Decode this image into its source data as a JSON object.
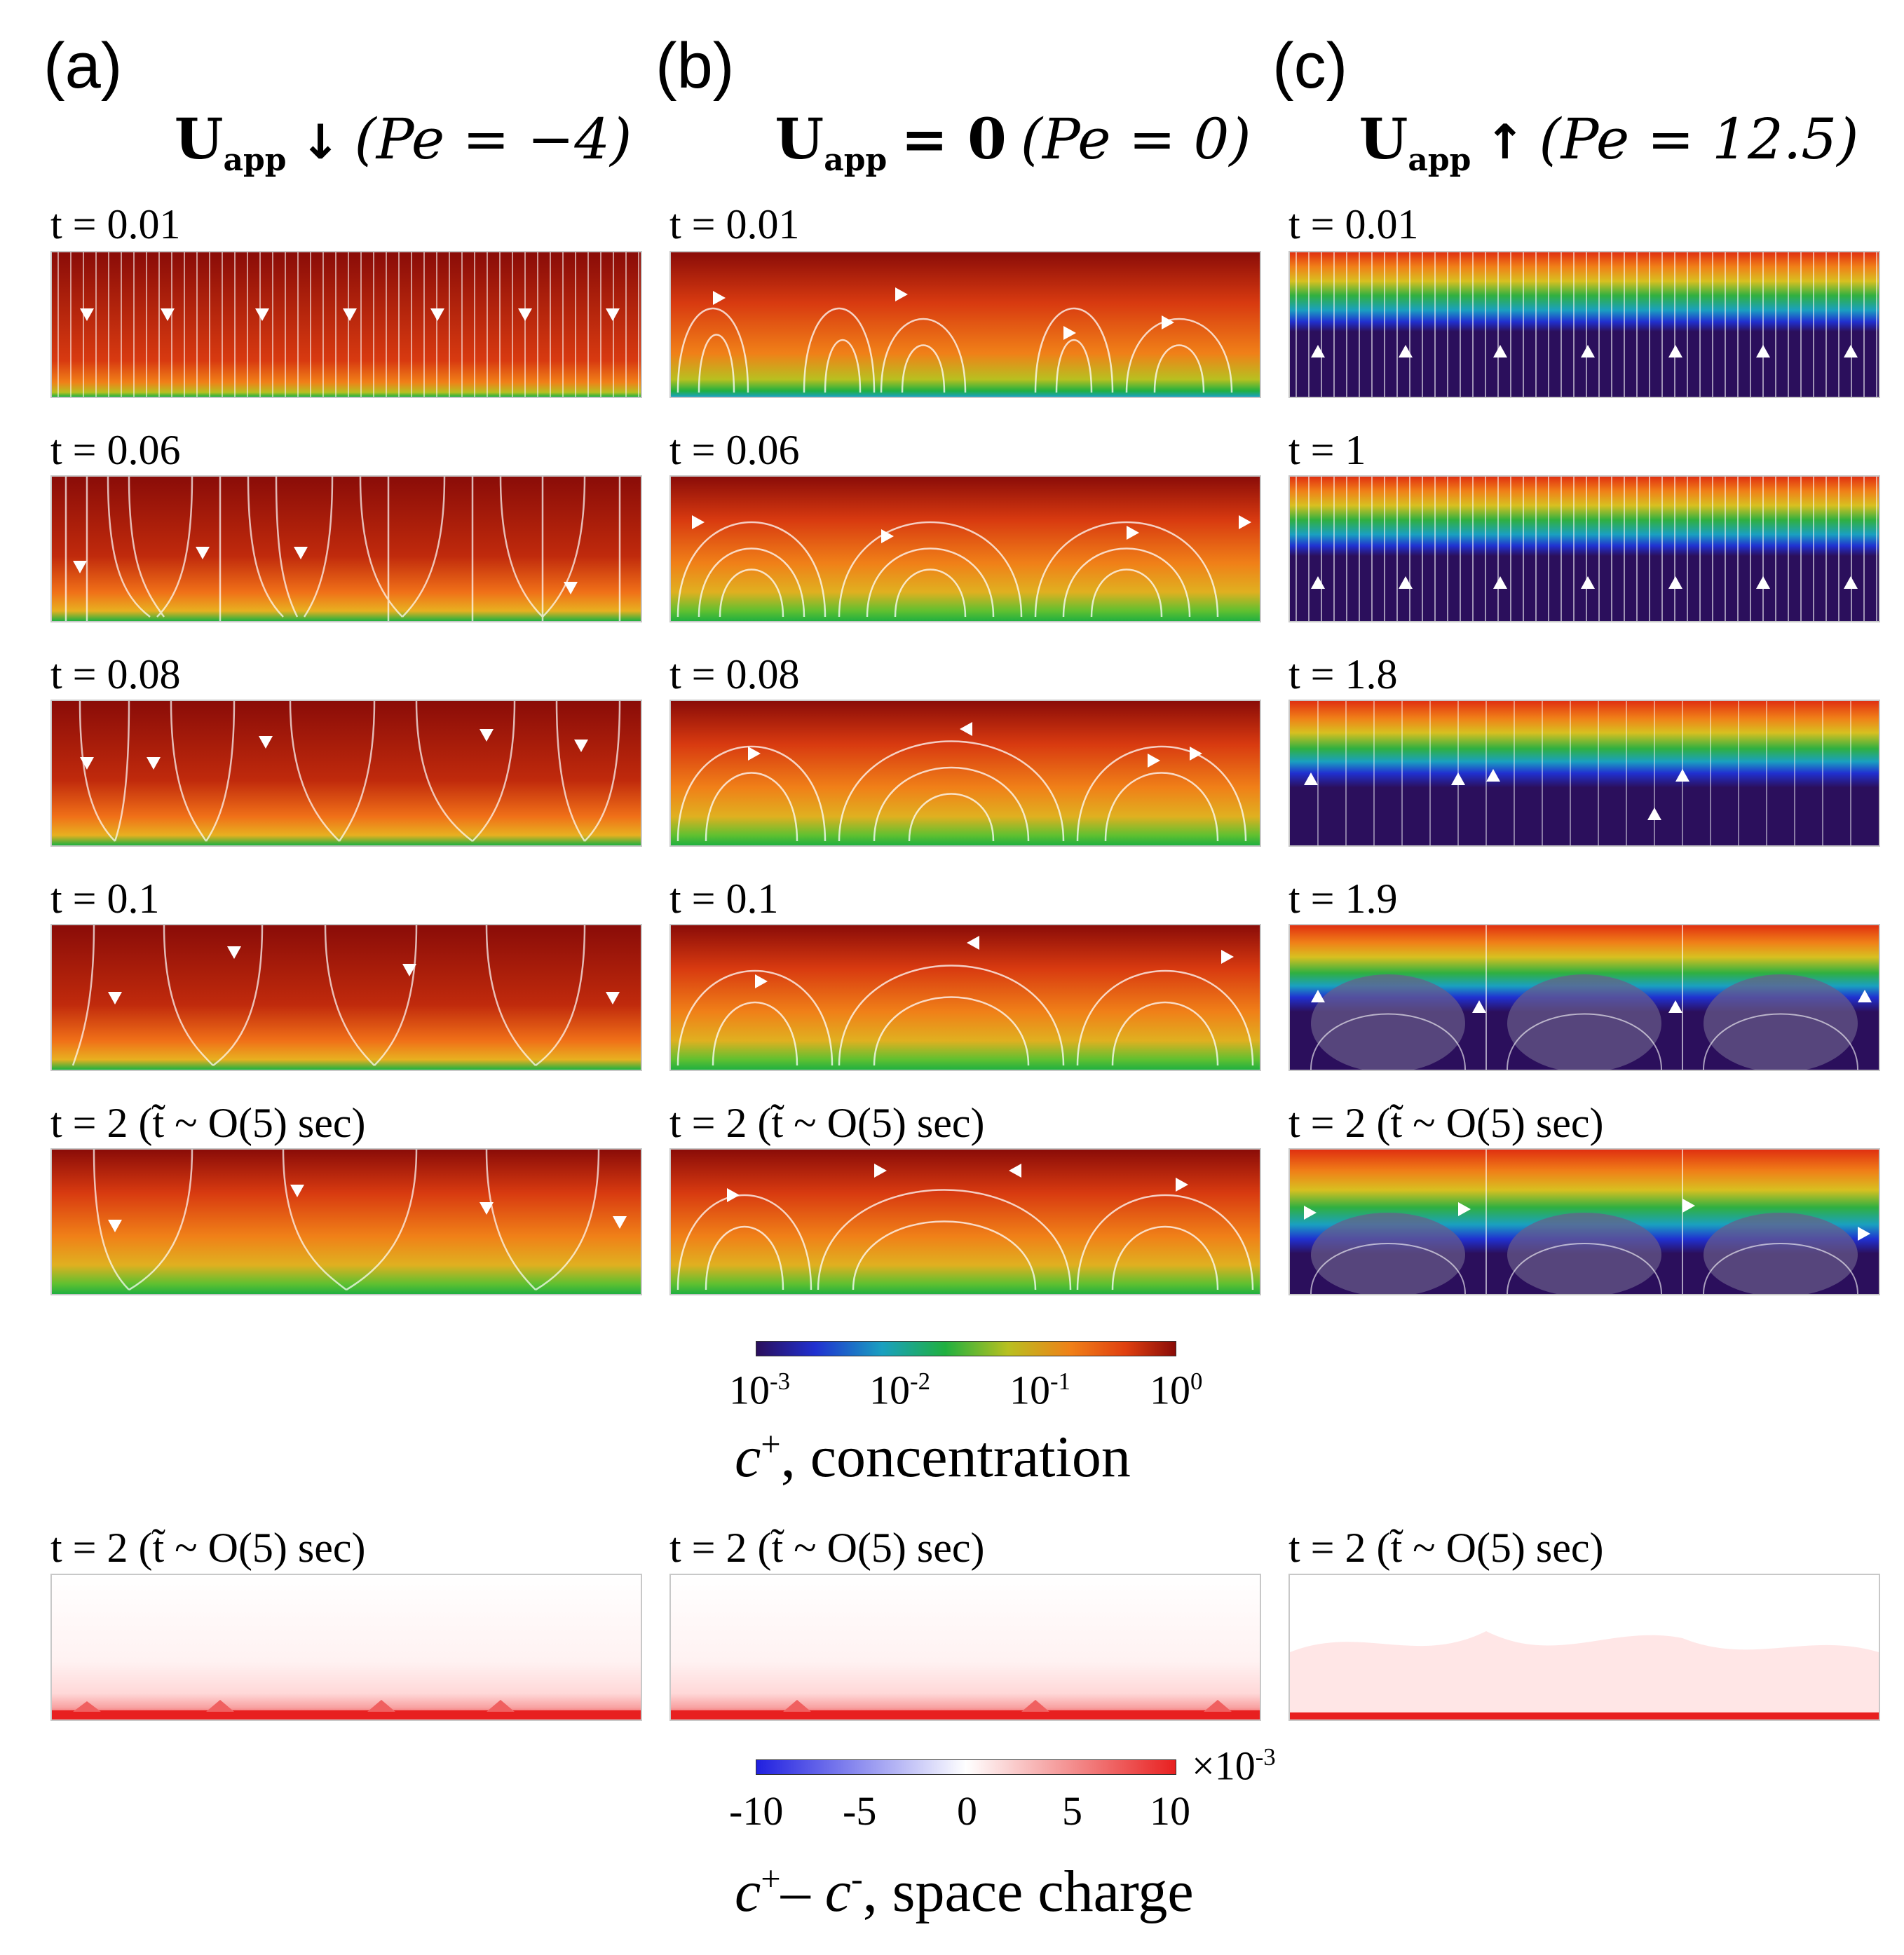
{
  "columns": [
    {
      "letter": "(a)",
      "title_u": "U",
      "title_sub": "app",
      "title_op": "↓",
      "title_pe": "(Pe = −4)"
    },
    {
      "letter": "(b)",
      "title_u": "U",
      "title_sub": "app",
      "title_op": "= 0",
      "title_pe": "(Pe = 0)"
    },
    {
      "letter": "(c)",
      "title_u": "U",
      "title_sub": "app",
      "title_op": "↑",
      "title_pe": "(Pe = 12.5)"
    }
  ],
  "time_labels": {
    "a": [
      "t = 0.01",
      "t = 0.06",
      "t = 0.08",
      "t = 0.1",
      "t = 2  (t̃ ~ O(5) sec)"
    ],
    "b": [
      "t = 0.01",
      "t = 0.06",
      "t = 0.08",
      "t = 0.1",
      "t = 2  (t̃ ~ O(5) sec)"
    ],
    "c": [
      "t = 0.01",
      "t = 1",
      "t = 1.8",
      "t = 1.9",
      "t = 2  (t̃ ~ O(5) sec)"
    ]
  },
  "charge_labels": [
    "t = 2  (t̃ ~ O(5) sec)",
    "t = 2  (t̃ ~ O(5) sec)",
    "t = 2  (t̃ ~ O(5) sec)"
  ],
  "concentration_colorbar": {
    "ticks": [
      "10-3",
      "10-2",
      "10-1",
      "100"
    ],
    "tick_bases": [
      "10",
      "10",
      "10",
      "10"
    ],
    "tick_exps": [
      "-3",
      "-2",
      "-1",
      "0"
    ],
    "label_var": "c",
    "label_sup": "+",
    "label_text": ", concentration",
    "colors": [
      "#2b0f5c",
      "#2030d0",
      "#1aa0c0",
      "#20b040",
      "#b8c020",
      "#f08018",
      "#e04010",
      "#8a0c08"
    ]
  },
  "charge_colorbar": {
    "ticks": [
      "-10",
      "-5",
      "0",
      "5",
      "10"
    ],
    "multiplier": "×10",
    "multiplier_exp": "-3",
    "label_var1": "c",
    "label_sup1": "+",
    "label_dash": "– ",
    "label_var2": "c",
    "label_sup2": "-",
    "label_text": ", space charge",
    "colors": [
      "#2020e0",
      "#ffffff",
      "#e82020"
    ]
  }
}
